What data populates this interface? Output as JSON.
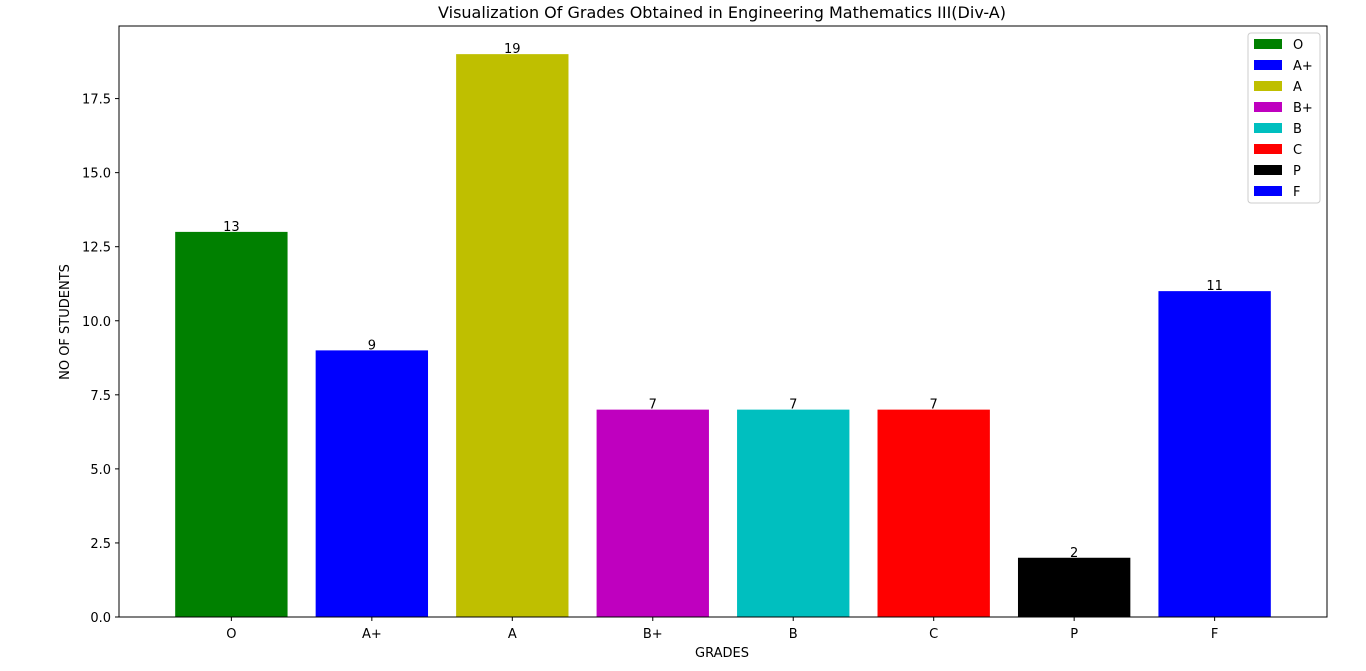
{
  "chart_data": {
    "type": "bar",
    "title": "Visualization Of Grades Obtained in Engineering Mathematics III(Div-A)",
    "xlabel": "GRADES",
    "ylabel": "NO OF STUDENTS",
    "categories": [
      "O",
      "A+",
      "A",
      "B+",
      "B",
      "C",
      "P",
      "F"
    ],
    "values": [
      13,
      9,
      19,
      7,
      7,
      7,
      2,
      11
    ],
    "colors": [
      "#008000",
      "#0000ff",
      "#bfbf00",
      "#bf00bf",
      "#00bfbf",
      "#ff0000",
      "#000000",
      "#0000ff"
    ],
    "ylim": [
      0,
      19.95
    ],
    "yticks": [
      0.0,
      2.5,
      5.0,
      7.5,
      10.0,
      12.5,
      15.0,
      17.5
    ],
    "ytick_labels": [
      "0.0",
      "2.5",
      "5.0",
      "7.5",
      "10.0",
      "12.5",
      "15.0",
      "17.5"
    ],
    "grid": false,
    "legend": {
      "placement": "top-right",
      "entries": [
        "O",
        "A+",
        "A",
        "B+",
        "B",
        "C",
        "P",
        "F"
      ]
    }
  }
}
